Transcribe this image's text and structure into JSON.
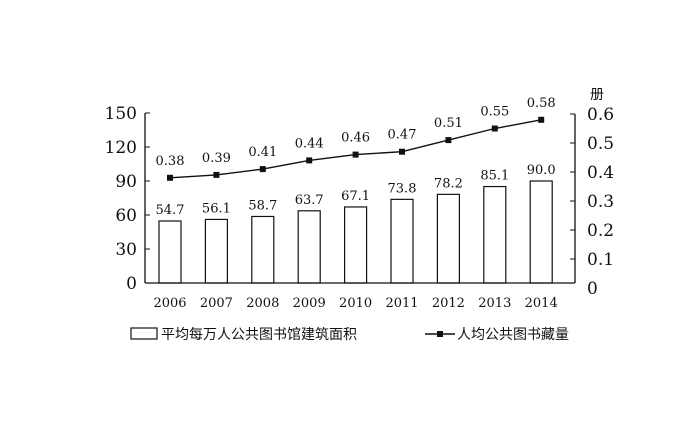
{
  "chart_data": {
    "type": "bar+line",
    "categories": [
      "2006",
      "2007",
      "2008",
      "2009",
      "2010",
      "2011",
      "2012",
      "2013",
      "2014"
    ],
    "series": [
      {
        "name": "平均每万人公共图书馆建筑面积",
        "type": "bar",
        "axis": "left",
        "values": [
          54.7,
          56.1,
          58.7,
          63.7,
          67.1,
          73.8,
          78.2,
          85.1,
          90.0
        ],
        "labels": [
          "54.7",
          "56.1",
          "58.7",
          "63.7",
          "67.1",
          "73.8",
          "78.2",
          "85.1",
          "90.0"
        ]
      },
      {
        "name": "人均公共图书藏量",
        "type": "line",
        "axis": "right",
        "values": [
          0.38,
          0.39,
          0.41,
          0.44,
          0.46,
          0.47,
          0.51,
          0.55,
          0.58
        ],
        "labels": [
          "0.38",
          "0.39",
          "0.41",
          "0.44",
          "0.46",
          "0.47",
          "0.51",
          "0.55",
          "0.58"
        ]
      }
    ],
    "left_axis": {
      "ylim": [
        0,
        150
      ],
      "ticks": [
        "0",
        "30",
        "60",
        "90",
        "120",
        "150"
      ]
    },
    "right_axis": {
      "ylim": [
        0,
        0.6
      ],
      "unit": "册",
      "ticks": [
        "0",
        "0.1",
        "0.2",
        "0.3",
        "0.4",
        "0.5",
        "0.6"
      ]
    },
    "grid": false,
    "legend_placement": "bottom",
    "colors": {
      "bar_fill": "#ffffff",
      "stroke": "#111111"
    }
  }
}
